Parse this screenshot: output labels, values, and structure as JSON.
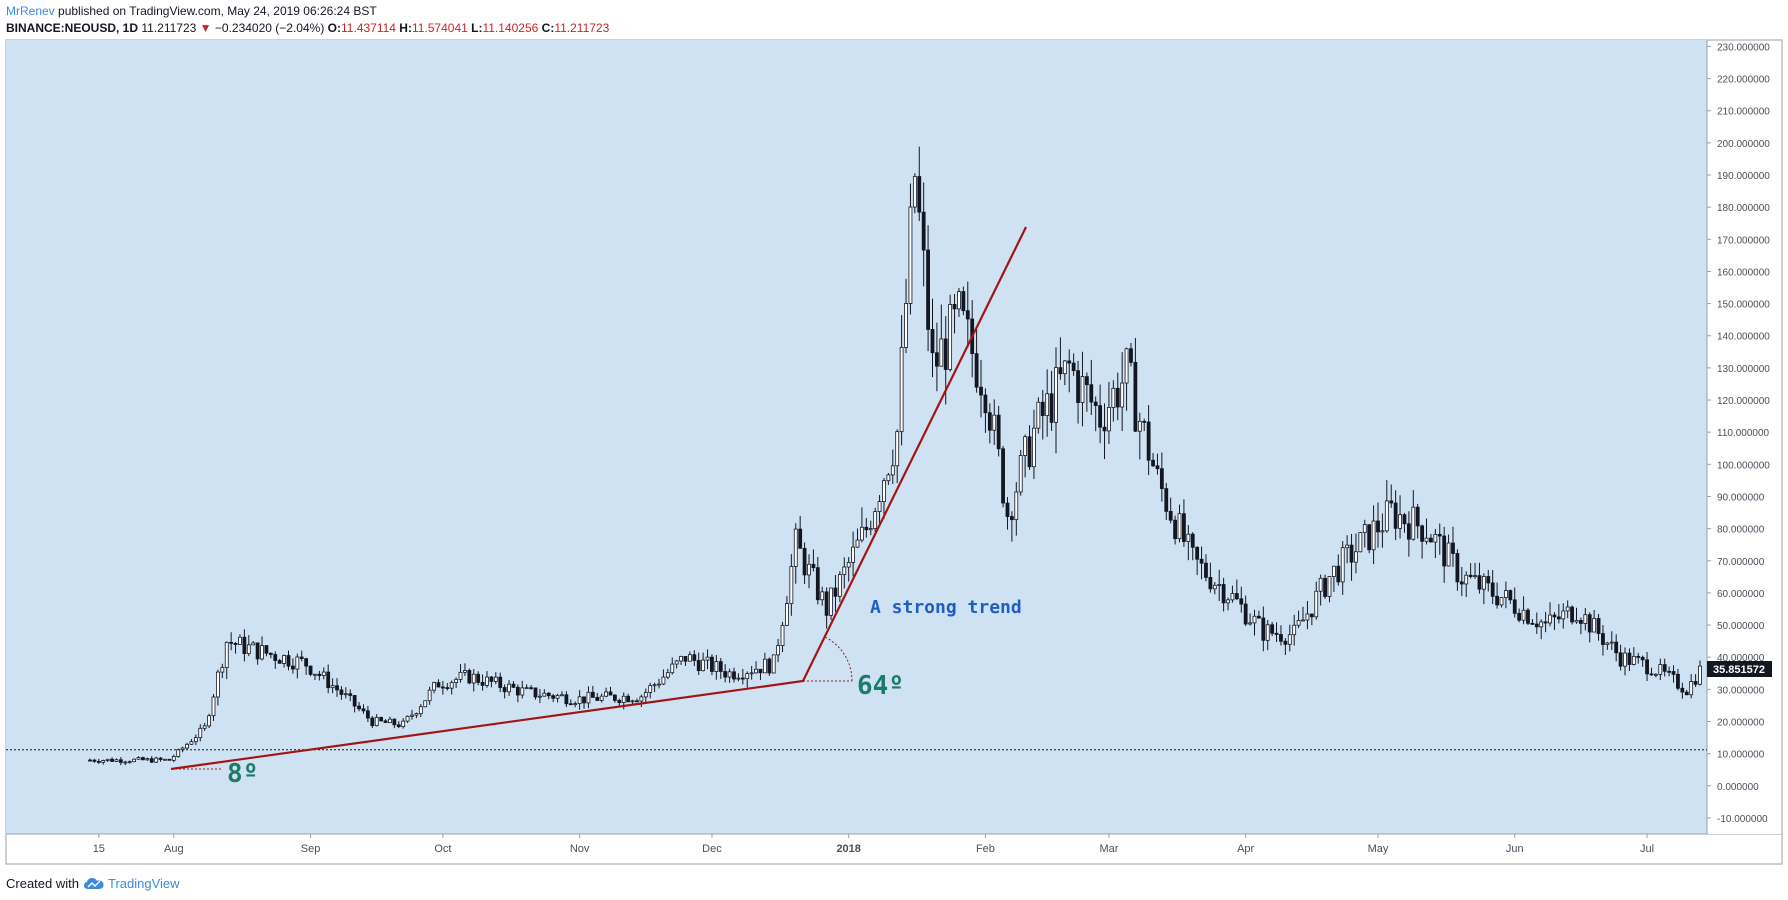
{
  "header": {
    "author": "MrRenev",
    "published_text": "published on TradingView.com, May 24, 2019 06:26:24 BST",
    "symbol": "BINANCE:NEOUSD, 1D",
    "last_price": "11.211723",
    "change_arrow": "▼",
    "change": "−0.234020 (−2.04%)",
    "open_label": "O:",
    "open": "11.437114",
    "high_label": "H:",
    "high": "11.574041",
    "low_label": "L:",
    "low": "11.140256",
    "close_label": "C:",
    "close": "11.211723"
  },
  "colors": {
    "chart_bg": "#cfe2f3",
    "candle": "#131722",
    "trendline": "#a31515",
    "annotation_angle": "#1e7b6a",
    "annotation_text": "#1f5fbf",
    "price_label_bg": "#131722",
    "brand": "#3c8ae0"
  },
  "chart_data": {
    "type": "candlestick",
    "title": "",
    "ylim": [
      -15,
      232
    ],
    "y_ticks": [
      "230.000000",
      "220.000000",
      "210.000000",
      "200.000000",
      "190.000000",
      "180.000000",
      "170.000000",
      "160.000000",
      "150.000000",
      "140.000000",
      "130.000000",
      "120.000000",
      "110.000000",
      "100.000000",
      "90.000000",
      "80.000000",
      "70.000000",
      "60.000000",
      "50.000000",
      "40.000000",
      "30.000000",
      "20.000000",
      "10.000000",
      "0.000000",
      "-10.000000"
    ],
    "x_ticks": [
      "15",
      "Aug",
      "Sep",
      "Oct",
      "Nov",
      "Dec",
      "2018",
      "Feb",
      "Mar",
      "Apr",
      "May",
      "Jun",
      "Jul"
    ],
    "current_price_label": "35.851572",
    "dotted_level": 11.21,
    "approx_close_path": [
      [
        "2017-07-13",
        8
      ],
      [
        "2017-07-31",
        8
      ],
      [
        "2017-08-08",
        18
      ],
      [
        "2017-08-13",
        45
      ],
      [
        "2017-08-20",
        42
      ],
      [
        "2017-08-31",
        38
      ],
      [
        "2017-09-07",
        30
      ],
      [
        "2017-09-15",
        20
      ],
      [
        "2017-09-22",
        19
      ],
      [
        "2017-09-30",
        32
      ],
      [
        "2017-10-07",
        34
      ],
      [
        "2017-10-20",
        29
      ],
      [
        "2017-11-01",
        27
      ],
      [
        "2017-11-15",
        28
      ],
      [
        "2017-11-25",
        40
      ],
      [
        "2017-12-05",
        35
      ],
      [
        "2017-12-15",
        38
      ],
      [
        "2017-12-20",
        75
      ],
      [
        "2017-12-27",
        55
      ],
      [
        "2018-01-05",
        80
      ],
      [
        "2018-01-12",
        110
      ],
      [
        "2018-01-16",
        190
      ],
      [
        "2018-01-20",
        130
      ],
      [
        "2018-01-26",
        145
      ],
      [
        "2018-02-01",
        125
      ],
      [
        "2018-02-06",
        85
      ],
      [
        "2018-02-12",
        110
      ],
      [
        "2018-02-20",
        130
      ],
      [
        "2018-02-27",
        115
      ],
      [
        "2018-03-05",
        128
      ],
      [
        "2018-03-12",
        95
      ],
      [
        "2018-03-20",
        70
      ],
      [
        "2018-03-28",
        60
      ],
      [
        "2018-04-05",
        48
      ],
      [
        "2018-04-12",
        47
      ],
      [
        "2018-04-20",
        65
      ],
      [
        "2018-04-27",
        75
      ],
      [
        "2018-05-04",
        85
      ],
      [
        "2018-05-12",
        80
      ],
      [
        "2018-05-20",
        65
      ],
      [
        "2018-05-30",
        58
      ],
      [
        "2018-06-08",
        50
      ],
      [
        "2018-06-15",
        55
      ],
      [
        "2018-06-25",
        40
      ],
      [
        "2018-07-02",
        37
      ],
      [
        "2018-07-10",
        30
      ],
      [
        "2018-07-13",
        35.85
      ]
    ]
  },
  "annotations": {
    "angle_small": "8º",
    "angle_large": "64º",
    "trend_text": "A strong trend"
  },
  "footer": {
    "created_with": "Created with",
    "brand": "TradingView"
  }
}
